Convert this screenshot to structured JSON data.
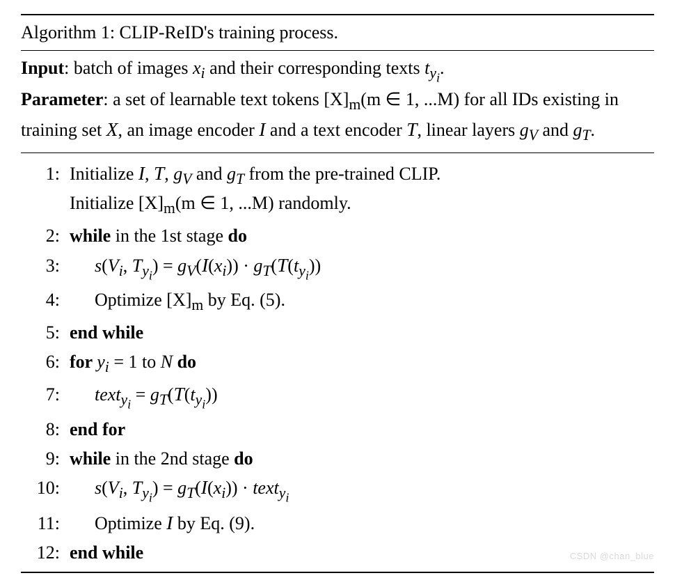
{
  "title": "Algorithm 1: CLIP-ReID's training process.",
  "input_label": "Input",
  "input_text": ": batch of images ",
  "param_label": "Parameter",
  "watermark": "CSDN @chan_blue",
  "g": {
    "xi": "x",
    "i": "i",
    "t": "t",
    "yi": "y",
    "X": "X",
    "m": "m",
    "Xset": "X",
    "I": "I",
    "T": "T",
    "gV": "g",
    "gT": "g",
    "V": "V",
    "Tc": "T",
    "M": "M",
    "N": "N",
    "s": "s",
    "text": "text",
    "eq5": "(5)",
    "eq9": "(9)"
  },
  "steps": {
    "s1a": "Initialize ",
    "s1b": " from the pre-trained CLIP.",
    "s1c": "Initialize ",
    "s1d": " randomly.",
    "s2a": "while",
    "s2b": " in the 1st stage ",
    "s2c": "do",
    "s4a": "Optimize ",
    "s4b": " by Eq. ",
    "s4c": ".",
    "s5": "end while",
    "s6a": "for ",
    "s6b": " to ",
    "s6c": " do",
    "s8": "end for",
    "s9a": "while",
    "s9b": " in the 2nd stage ",
    "s9c": "do",
    "s11a": "Optimize ",
    "s11b": " by Eq. ",
    "s11c": ".",
    "s12": "end while"
  },
  "nums": [
    "1:",
    "2:",
    "3:",
    "4:",
    "5:",
    "6:",
    "7:",
    "8:",
    "9:",
    "10:",
    "11:",
    "12:"
  ]
}
